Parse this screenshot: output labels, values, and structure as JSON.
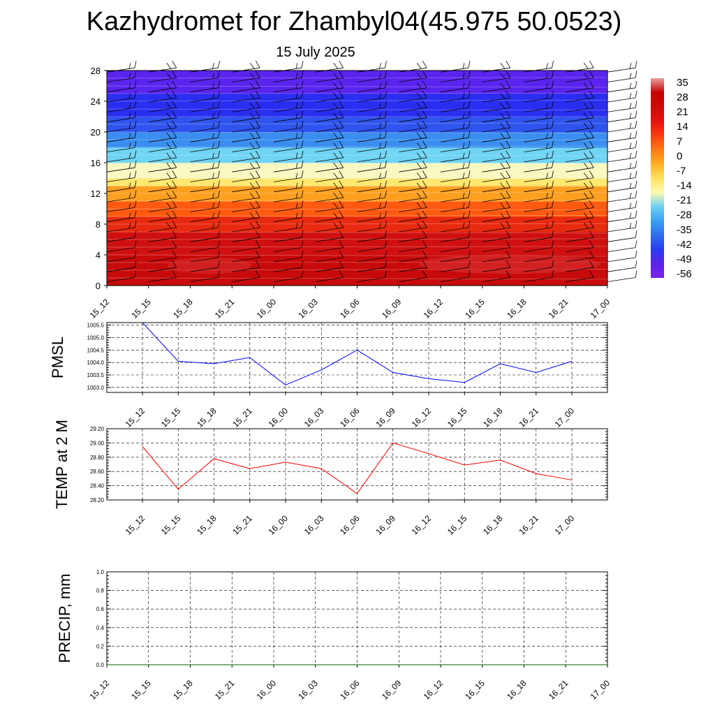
{
  "title": "Kazhydromet for Zhambyl04(45.975 50.0523)",
  "subtitle": "15 July 2025",
  "colors": {
    "pmsl_line": "#0000ff",
    "temp_line": "#ff0000",
    "precip_line": "#006400",
    "scale": [
      "#7a22f0",
      "#5a22ee",
      "#2a3bf2",
      "#2f6ff2",
      "#3aa0f0",
      "#6cd0f4",
      "#fffbb0",
      "#ffe060",
      "#ffb020",
      "#ff7a10",
      "#ff3a10",
      "#e81010",
      "#cc0a0a",
      "#c80000",
      "#e8a0a0"
    ]
  },
  "chart_data": [
    {
      "type": "heatmap",
      "name": "upper-air-temperature",
      "y_ticks": [
        0,
        4,
        8,
        12,
        16,
        20,
        24,
        28
      ],
      "ylim": [
        0,
        28
      ],
      "x_ticks": [
        "15_12",
        "15_15",
        "15_18",
        "15_21",
        "16_00",
        "16_03",
        "16_06",
        "16_09",
        "16_12",
        "16_15",
        "16_18",
        "16_21",
        "17_00"
      ],
      "colorbar": {
        "labels": [
          "35",
          "28",
          "21",
          "14",
          "7",
          "0",
          "-7",
          "-14",
          "-21",
          "-28",
          "-35",
          "-42",
          "-49",
          "-56"
        ],
        "min": -63,
        "max": 42
      },
      "barbs": "wind barbs at each time step and level"
    },
    {
      "type": "line",
      "ylabel": "PMSL",
      "x": [
        "15_12",
        "15_15",
        "15_18",
        "15_21",
        "16_00",
        "16_03",
        "16_06",
        "16_09",
        "16_12",
        "16_15",
        "16_18",
        "16_21",
        "17_00"
      ],
      "values": [
        1005.6,
        1004.05,
        1003.95,
        1004.2,
        1003.1,
        1003.7,
        1004.5,
        1003.6,
        1003.35,
        1003.2,
        1003.95,
        1003.6,
        1004.05
      ],
      "y_ticks": [
        "1003.0",
        "1003.5",
        "1004.0",
        "1004.5",
        "1005.0",
        "1005.5"
      ],
      "ylim": [
        1002.8,
        1005.6
      ]
    },
    {
      "type": "line",
      "ylabel": "TEMP at 2 M",
      "x": [
        "15_12",
        "15_15",
        "15_18",
        "15_21",
        "16_00",
        "16_03",
        "16_06",
        "16_09",
        "16_12",
        "16_15",
        "16_18",
        "16_21",
        "17_00"
      ],
      "values": [
        28.95,
        28.35,
        28.78,
        28.64,
        28.73,
        28.64,
        28.29,
        29.0,
        28.85,
        28.69,
        28.76,
        28.57,
        28.48
      ],
      "y_ticks": [
        "28.20",
        "28.40",
        "28.60",
        "28.80",
        "29.00",
        "29.20"
      ],
      "ylim": [
        28.2,
        29.2
      ]
    },
    {
      "type": "line",
      "ylabel": "PRECIP, mm",
      "x": [
        "15_12",
        "15_15",
        "15_18",
        "15_21",
        "16_00",
        "16_03",
        "16_06",
        "16_09",
        "16_12",
        "16_15",
        "16_18",
        "16_21",
        "17_00"
      ],
      "values": [
        0,
        0,
        0,
        0,
        0,
        0,
        0,
        0,
        0,
        0,
        0,
        0,
        0
      ],
      "y_ticks": [
        "0.0",
        "0.2",
        "0.4",
        "0.6",
        "0.8",
        "1.0"
      ],
      "ylim": [
        0,
        1
      ]
    }
  ]
}
